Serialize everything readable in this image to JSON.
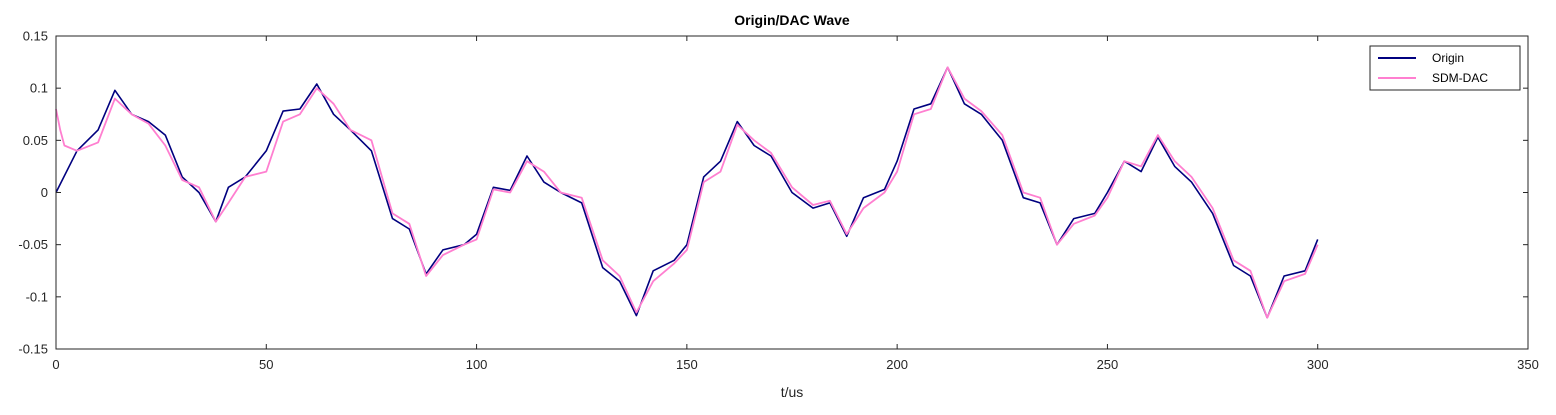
{
  "chart_data": {
    "type": "line",
    "title": "Origin/DAC Wave",
    "xlabel": "t/us",
    "ylabel": "",
    "xlim": [
      0,
      350
    ],
    "ylim": [
      -0.15,
      0.15
    ],
    "xticks": [
      0,
      50,
      100,
      150,
      200,
      250,
      300,
      350
    ],
    "xtick_labels": [
      "0",
      "50",
      "100",
      "150",
      "200",
      "250",
      "300",
      "350"
    ],
    "yticks": [
      -0.15,
      -0.1,
      -0.05,
      0,
      0.05,
      0.1,
      0.15
    ],
    "ytick_labels": [
      "-0.15",
      "-0.1",
      "-0.05",
      "0",
      "0.05",
      "0.1",
      "0.15"
    ],
    "grid": false,
    "legend_position": "top-right",
    "series": [
      {
        "name": "Origin",
        "color": "#00007f",
        "x": [
          0,
          5,
          10,
          14,
          18,
          22,
          26,
          30,
          34,
          38,
          41,
          45,
          50,
          54,
          58,
          62,
          66,
          70,
          75,
          80,
          84,
          88,
          92,
          97,
          100,
          104,
          108,
          112,
          116,
          120,
          125,
          130,
          134,
          138,
          142,
          147,
          150,
          154,
          158,
          162,
          166,
          170,
          175,
          180,
          184,
          188,
          192,
          197,
          200,
          204,
          208,
          212,
          216,
          220,
          225,
          230,
          234,
          238,
          242,
          247,
          250,
          254,
          258,
          262,
          266,
          270,
          275,
          280,
          284,
          288,
          292,
          297,
          300
        ],
        "y": [
          0.0,
          0.04,
          0.06,
          0.098,
          0.075,
          0.068,
          0.055,
          0.015,
          0.0,
          -0.028,
          0.005,
          0.015,
          0.04,
          0.078,
          0.08,
          0.104,
          0.075,
          0.06,
          0.04,
          -0.025,
          -0.035,
          -0.078,
          -0.055,
          -0.05,
          -0.04,
          0.005,
          0.002,
          0.035,
          0.01,
          0.0,
          -0.01,
          -0.072,
          -0.085,
          -0.118,
          -0.075,
          -0.065,
          -0.05,
          0.015,
          0.03,
          0.068,
          0.045,
          0.035,
          0.0,
          -0.015,
          -0.01,
          -0.042,
          -0.005,
          0.003,
          0.03,
          0.08,
          0.085,
          0.12,
          0.085,
          0.075,
          0.05,
          -0.005,
          -0.01,
          -0.05,
          -0.025,
          -0.02,
          0.0,
          0.03,
          0.02,
          0.053,
          0.025,
          0.01,
          -0.02,
          -0.07,
          -0.08,
          -0.12,
          -0.08,
          -0.075,
          -0.045
        ]
      },
      {
        "name": "SDM-DAC",
        "color": "#ff7fd0",
        "x": [
          0,
          1,
          2,
          5,
          10,
          14,
          18,
          22,
          26,
          30,
          34,
          38,
          41,
          45,
          50,
          54,
          58,
          62,
          66,
          70,
          75,
          80,
          84,
          88,
          92,
          97,
          100,
          104,
          108,
          112,
          116,
          120,
          125,
          130,
          134,
          138,
          142,
          147,
          150,
          154,
          158,
          162,
          166,
          170,
          175,
          180,
          184,
          188,
          192,
          197,
          200,
          204,
          208,
          212,
          216,
          220,
          225,
          230,
          234,
          238,
          242,
          247,
          250,
          254,
          258,
          262,
          266,
          270,
          275,
          280,
          284,
          288,
          292,
          297,
          300
        ],
        "y": [
          0.08,
          0.06,
          0.045,
          0.04,
          0.048,
          0.09,
          0.075,
          0.066,
          0.045,
          0.012,
          0.005,
          -0.028,
          -0.01,
          0.015,
          0.02,
          0.068,
          0.075,
          0.1,
          0.085,
          0.06,
          0.05,
          -0.02,
          -0.03,
          -0.08,
          -0.06,
          -0.05,
          -0.045,
          0.003,
          0.0,
          0.03,
          0.02,
          0.0,
          -0.005,
          -0.065,
          -0.08,
          -0.115,
          -0.085,
          -0.068,
          -0.055,
          0.01,
          0.02,
          0.065,
          0.05,
          0.038,
          0.005,
          -0.012,
          -0.008,
          -0.04,
          -0.015,
          0.0,
          0.02,
          0.075,
          0.08,
          0.12,
          0.09,
          0.078,
          0.055,
          0.0,
          -0.005,
          -0.05,
          -0.03,
          -0.022,
          -0.005,
          0.03,
          0.025,
          0.055,
          0.03,
          0.015,
          -0.015,
          -0.065,
          -0.075,
          -0.12,
          -0.085,
          -0.078,
          -0.05
        ]
      }
    ]
  }
}
